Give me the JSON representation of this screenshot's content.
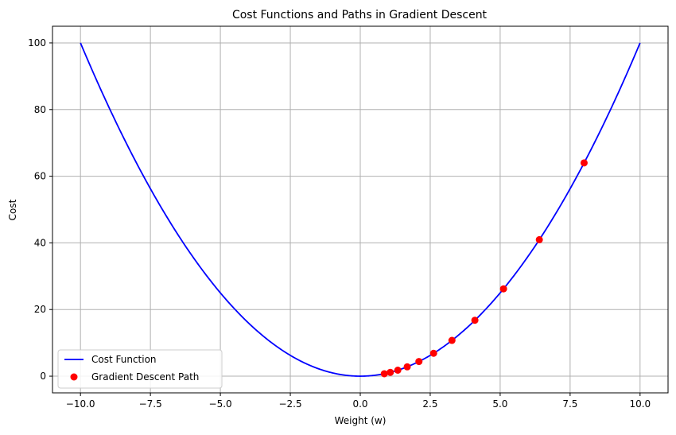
{
  "chart_data": {
    "type": "line",
    "title": "Cost Functions and Paths in Gradient Descent",
    "xlabel": "Weight (w)",
    "ylabel": "Cost",
    "xlim": [
      -11.0,
      11.0
    ],
    "ylim": [
      -5,
      105
    ],
    "xticks": [
      -10.0,
      -7.5,
      -5.0,
      -2.5,
      0.0,
      2.5,
      5.0,
      7.5,
      10.0
    ],
    "xtick_labels": [
      "−10.0",
      "−7.5",
      "−5.0",
      "−2.5",
      "0.0",
      "2.5",
      "5.0",
      "7.5",
      "10.0"
    ],
    "yticks": [
      0,
      20,
      40,
      60,
      80,
      100
    ],
    "ytick_labels": [
      "0",
      "20",
      "40",
      "60",
      "80",
      "100"
    ],
    "grid": true,
    "legend_position": "lower-left",
    "series": [
      {
        "name": "Cost Function",
        "type": "line",
        "color": "#0000ff",
        "function": "w^2",
        "x_range": [
          -10,
          10
        ]
      },
      {
        "name": "Gradient Descent Path",
        "type": "scatter",
        "color": "#ff0000",
        "x": [
          8.0,
          6.4,
          5.12,
          4.096,
          3.277,
          2.621,
          2.097,
          1.678,
          1.342,
          1.074,
          0.859
        ],
        "y": [
          64.0,
          40.96,
          26.21,
          16.78,
          10.74,
          6.87,
          4.4,
          2.81,
          1.8,
          1.15,
          0.74
        ]
      }
    ]
  }
}
